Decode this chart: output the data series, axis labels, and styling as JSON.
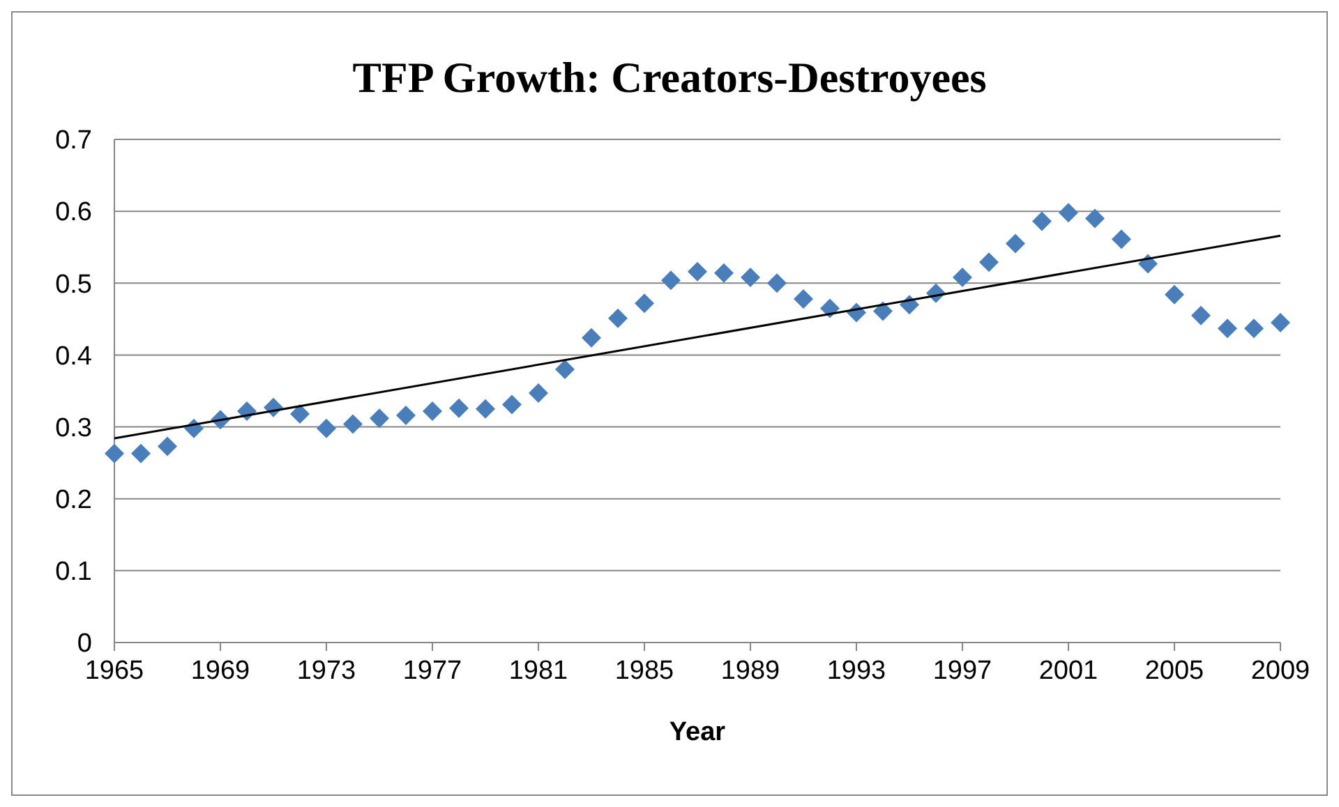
{
  "chart_data": {
    "type": "scatter",
    "title": "TFP Growth: Creators-Destroyees",
    "xlabel": "Year",
    "xlim": [
      1965,
      2009
    ],
    "xticks": [
      1965,
      1969,
      1973,
      1977,
      1981,
      1985,
      1989,
      1993,
      1997,
      2001,
      2005,
      2009
    ],
    "ylim": [
      0,
      0.7
    ],
    "yticks": [
      0,
      0.1,
      0.2,
      0.3,
      0.4,
      0.5,
      0.6,
      0.7
    ],
    "grid": "y",
    "series": [
      {
        "marker": "diamond",
        "color": "#4a7ebb",
        "x": [
          1965,
          1966,
          1967,
          1968,
          1969,
          1970,
          1971,
          1972,
          1973,
          1974,
          1975,
          1976,
          1977,
          1978,
          1979,
          1980,
          1981,
          1982,
          1983,
          1984,
          1985,
          1986,
          1987,
          1988,
          1989,
          1990,
          1991,
          1992,
          1993,
          1994,
          1995,
          1996,
          1997,
          1998,
          1999,
          2000,
          2001,
          2002,
          2003,
          2004,
          2005,
          2006,
          2007,
          2008,
          2009
        ],
        "values": [
          0.263,
          0.263,
          0.273,
          0.298,
          0.31,
          0.322,
          0.327,
          0.318,
          0.298,
          0.304,
          0.312,
          0.316,
          0.322,
          0.326,
          0.325,
          0.331,
          0.347,
          0.38,
          0.424,
          0.451,
          0.472,
          0.504,
          0.516,
          0.514,
          0.508,
          0.5,
          0.478,
          0.465,
          0.459,
          0.461,
          0.47,
          0.486,
          0.508,
          0.529,
          0.555,
          0.586,
          0.598,
          0.59,
          0.561,
          0.527,
          0.484,
          0.455,
          0.437,
          0.437,
          0.445
        ]
      },
      {
        "type": "line",
        "color": "#000000",
        "line_style": "solid",
        "x": [
          1965,
          2009
        ],
        "values": [
          0.284,
          0.566
        ]
      }
    ]
  }
}
